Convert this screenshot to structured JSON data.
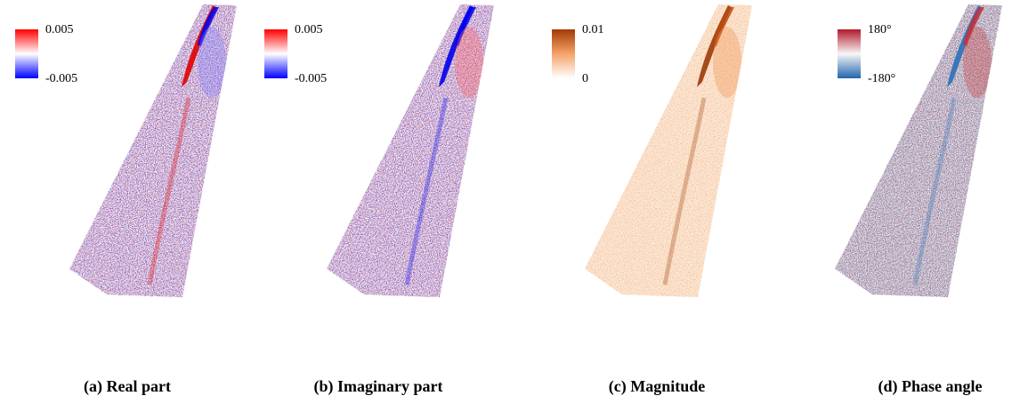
{
  "panels": [
    {
      "caption": "(a) Real part",
      "colorbar": {
        "max_label": "0.005",
        "min_label": "-0.005"
      }
    },
    {
      "caption": "(b) Imaginary part",
      "colorbar": {
        "max_label": "0.005",
        "min_label": "-0.005"
      }
    },
    {
      "caption": "(c) Magnitude",
      "colorbar": {
        "max_label": "0.01",
        "min_label": "0"
      }
    },
    {
      "caption": "(d) Phase angle",
      "colorbar": {
        "max_label": "180°",
        "min_label": "-180°"
      }
    }
  ]
}
